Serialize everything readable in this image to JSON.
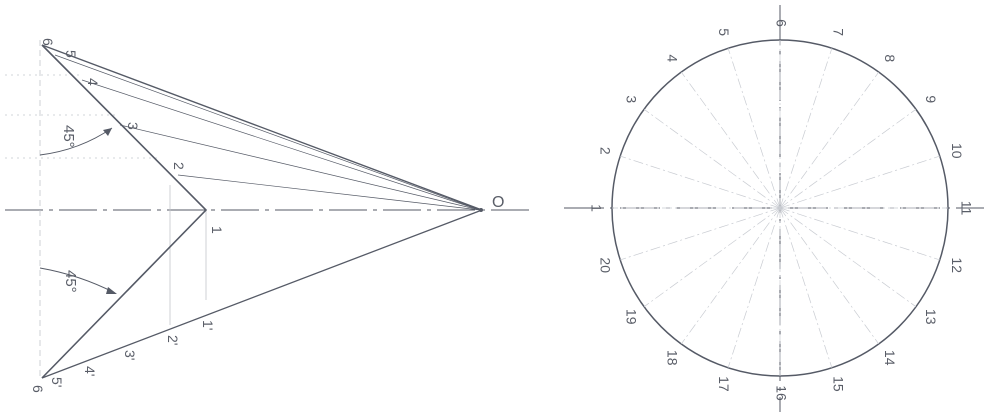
{
  "left_figure": {
    "origin_label": "O",
    "upper_points": [
      "1",
      "2",
      "3",
      "4",
      "5",
      "6"
    ],
    "lower_points": [
      "1'",
      "2'",
      "3'",
      "4'",
      "5'",
      "6"
    ],
    "upper_angle_label": "45°",
    "lower_angle_label": "45°"
  },
  "right_figure": {
    "division_labels": [
      "1",
      "2",
      "3",
      "4",
      "5",
      "6",
      "7",
      "8",
      "9",
      "10",
      "11",
      "12",
      "13",
      "14",
      "15",
      "16",
      "17",
      "18",
      "19",
      "20"
    ]
  }
}
